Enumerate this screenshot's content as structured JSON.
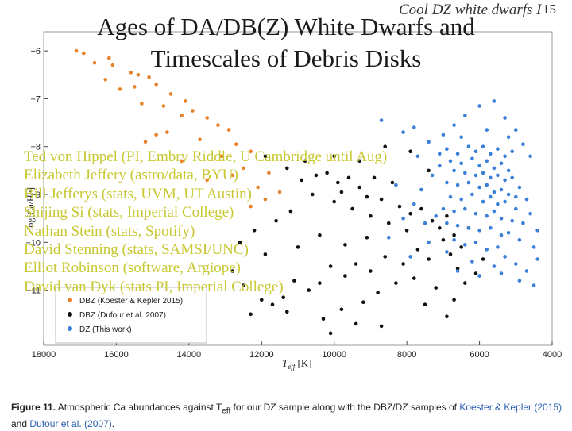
{
  "slide": {
    "title_line1": "Ages of DA/DB(Z) White Dwarfs and",
    "title_line2": "Timescales of Debris Disks",
    "credits": [
      "Ted von Hippel (PI, Embry Riddle, U Cambridge until Aug)",
      "Elizabeth Jeffery (astro/data, BYU)",
      "Bill Jefferys (stats, UVM, UT Austin)",
      "Shijing Si (stats, Imperial College)",
      "Nathan Stein (stats, Spotify)",
      "David Stenning (stats, SAMSI/UNC)",
      "Elliot Robinson (software, Argiope)",
      "David van Dyk (stats PI, Imperial College)"
    ]
  },
  "figure": {
    "banner": "Cool DZ white dwarfs I",
    "page_number": "15",
    "caption_label": "Figure 11.",
    "caption_text": " Atmospheric Ca abundances against T",
    "caption_sub": "eff",
    "caption_text2": " for our DZ sample along with the DBZ/DZ samples of ",
    "caption_cite1": "Koester & Kepler (2015)",
    "caption_text3": " and ",
    "caption_cite2": "Dufour et al. (2007)",
    "caption_end": "."
  },
  "colors": {
    "orange": "#e8822a",
    "black": "#111111",
    "blue": "#3a7fd8",
    "credits_text": "#c8c832"
  },
  "chart_data": {
    "type": "scatter",
    "xlabel": "T",
    "xlabel_sub": "eff",
    "xlabel_unit": " [K]",
    "ylabel": "log[Ca/He]",
    "xlim": [
      18000,
      4000
    ],
    "ylim": [
      -12.15,
      -5.6
    ],
    "x_ticks": [
      18000,
      16000,
      14000,
      12000,
      10000,
      8000,
      6000,
      4000
    ],
    "y_ticks": [
      -6,
      -7,
      -8,
      -9,
      -10,
      -11
    ],
    "grid": false,
    "legend_position": "bottom-left",
    "series": [
      {
        "name": "DBZ (Koester & Kepler 2015)",
        "color": "#e8822a",
        "points": [
          [
            17100,
            -6.0
          ],
          [
            16900,
            -6.05
          ],
          [
            16200,
            -6.15
          ],
          [
            16600,
            -6.25
          ],
          [
            16100,
            -6.3
          ],
          [
            15600,
            -6.45
          ],
          [
            15400,
            -6.5
          ],
          [
            15100,
            -6.55
          ],
          [
            16300,
            -6.6
          ],
          [
            14900,
            -6.7
          ],
          [
            15500,
            -6.75
          ],
          [
            15900,
            -6.8
          ],
          [
            14500,
            -6.9
          ],
          [
            14100,
            -7.05
          ],
          [
            15300,
            -7.1
          ],
          [
            14700,
            -7.15
          ],
          [
            13900,
            -7.25
          ],
          [
            14200,
            -7.35
          ],
          [
            13500,
            -7.4
          ],
          [
            13200,
            -7.55
          ],
          [
            12900,
            -7.65
          ],
          [
            14600,
            -7.7
          ],
          [
            14900,
            -7.75
          ],
          [
            13700,
            -7.85
          ],
          [
            15200,
            -7.9
          ],
          [
            12700,
            -7.95
          ],
          [
            12300,
            -8.1
          ],
          [
            13100,
            -8.2
          ],
          [
            14200,
            -8.3
          ],
          [
            12500,
            -8.45
          ],
          [
            11800,
            -8.55
          ],
          [
            12800,
            -8.6
          ],
          [
            13500,
            -8.7
          ],
          [
            12100,
            -8.85
          ],
          [
            11500,
            -8.95
          ],
          [
            11900,
            -9.1
          ],
          [
            12300,
            -9.25
          ]
        ]
      },
      {
        "name": "DBZ (Dufour et al. 2007)",
        "color": "#111111",
        "points": [
          [
            11900,
            -8.2
          ],
          [
            11300,
            -8.45
          ],
          [
            10800,
            -8.3
          ],
          [
            10500,
            -8.6
          ],
          [
            10900,
            -8.7
          ],
          [
            10200,
            -8.55
          ],
          [
            9900,
            -8.75
          ],
          [
            9600,
            -8.65
          ],
          [
            9300,
            -8.85
          ],
          [
            9800,
            -8.95
          ],
          [
            9100,
            -9.05
          ],
          [
            8700,
            -9.1
          ],
          [
            8900,
            -8.65
          ],
          [
            8400,
            -8.75
          ],
          [
            8200,
            -9.25
          ],
          [
            7900,
            -9.4
          ],
          [
            7600,
            -9.3
          ],
          [
            7300,
            -9.55
          ],
          [
            7100,
            -9.7
          ],
          [
            6900,
            -9.45
          ],
          [
            6700,
            -9.85
          ],
          [
            7000,
            -9.95
          ],
          [
            6500,
            -10.1
          ],
          [
            6300,
            -9.7
          ],
          [
            6800,
            -10.25
          ],
          [
            7400,
            -10.35
          ],
          [
            6600,
            -10.55
          ],
          [
            7700,
            -10.15
          ],
          [
            8100,
            -10.45
          ],
          [
            8600,
            -10.3
          ],
          [
            9000,
            -10.6
          ],
          [
            9400,
            -10.45
          ],
          [
            9700,
            -10.7
          ],
          [
            10100,
            -10.5
          ],
          [
            10400,
            -10.85
          ],
          [
            10700,
            -11.0
          ],
          [
            11100,
            -10.8
          ],
          [
            11400,
            -11.15
          ],
          [
            11700,
            -11.3
          ],
          [
            12000,
            -11.2
          ],
          [
            12300,
            -11.5
          ],
          [
            10300,
            -11.6
          ],
          [
            9800,
            -11.4
          ],
          [
            9200,
            -11.25
          ],
          [
            8800,
            -11.05
          ],
          [
            8300,
            -10.85
          ],
          [
            7800,
            -10.75
          ],
          [
            7200,
            -10.95
          ],
          [
            6700,
            -11.2
          ],
          [
            6400,
            -10.85
          ],
          [
            6100,
            -10.65
          ],
          [
            5900,
            -10.35
          ],
          [
            8000,
            -9.75
          ],
          [
            8500,
            -9.6
          ],
          [
            9000,
            -9.45
          ],
          [
            9500,
            -9.3
          ],
          [
            10000,
            -9.15
          ],
          [
            10600,
            -9.0
          ],
          [
            11200,
            -9.35
          ],
          [
            11600,
            -9.55
          ],
          [
            12200,
            -9.75
          ],
          [
            12600,
            -10.0
          ],
          [
            11900,
            -10.25
          ],
          [
            11000,
            -10.1
          ],
          [
            10400,
            -9.85
          ],
          [
            9700,
            -10.05
          ],
          [
            9100,
            -9.9
          ],
          [
            12800,
            -10.6
          ],
          [
            12500,
            -10.9
          ],
          [
            11300,
            -11.45
          ],
          [
            10100,
            -11.9
          ],
          [
            9400,
            -11.7
          ],
          [
            7500,
            -11.3
          ],
          [
            6900,
            -11.55
          ],
          [
            8700,
            -11.75
          ],
          [
            7400,
            -8.5
          ],
          [
            7900,
            -8.1
          ],
          [
            8600,
            -8.0
          ],
          [
            9300,
            -8.3
          ],
          [
            10000,
            -8.2
          ]
        ]
      },
      {
        "name": "DZ (This work)",
        "color": "#3a7fd8",
        "points": [
          [
            8700,
            -7.45
          ],
          [
            8100,
            -7.7
          ],
          [
            7800,
            -7.6
          ],
          [
            7400,
            -7.9
          ],
          [
            7000,
            -7.75
          ],
          [
            6700,
            -7.55
          ],
          [
            6400,
            -7.35
          ],
          [
            6000,
            -7.15
          ],
          [
            5600,
            -7.05
          ],
          [
            5300,
            -7.4
          ],
          [
            5000,
            -7.65
          ],
          [
            4800,
            -7.95
          ],
          [
            4600,
            -8.2
          ],
          [
            6900,
            -8.05
          ],
          [
            6600,
            -8.15
          ],
          [
            6300,
            -8.0
          ],
          [
            6100,
            -8.1
          ],
          [
            5900,
            -8.0
          ],
          [
            5700,
            -8.15
          ],
          [
            5500,
            -8.05
          ],
          [
            5300,
            -8.2
          ],
          [
            5100,
            -8.1
          ],
          [
            6800,
            -8.3
          ],
          [
            6500,
            -8.35
          ],
          [
            6200,
            -8.25
          ],
          [
            6000,
            -8.4
          ],
          [
            5800,
            -8.3
          ],
          [
            5600,
            -8.45
          ],
          [
            5400,
            -8.35
          ],
          [
            5200,
            -8.5
          ],
          [
            6700,
            -8.5
          ],
          [
            6400,
            -8.55
          ],
          [
            6100,
            -8.6
          ],
          [
            5900,
            -8.55
          ],
          [
            5700,
            -8.65
          ],
          [
            5500,
            -8.6
          ],
          [
            5300,
            -8.7
          ],
          [
            5100,
            -8.65
          ],
          [
            6900,
            -8.75
          ],
          [
            6600,
            -8.8
          ],
          [
            6300,
            -8.75
          ],
          [
            6000,
            -8.85
          ],
          [
            5800,
            -8.8
          ],
          [
            5600,
            -8.95
          ],
          [
            5400,
            -8.9
          ],
          [
            5200,
            -9.0
          ],
          [
            4900,
            -8.85
          ],
          [
            6800,
            -9.05
          ],
          [
            6500,
            -9.1
          ],
          [
            6200,
            -9.0
          ],
          [
            5900,
            -9.15
          ],
          [
            5700,
            -9.05
          ],
          [
            5500,
            -9.2
          ],
          [
            5300,
            -9.15
          ],
          [
            5000,
            -9.3
          ],
          [
            4700,
            -9.1
          ],
          [
            7000,
            -9.3
          ],
          [
            6700,
            -9.35
          ],
          [
            6400,
            -9.3
          ],
          [
            6100,
            -9.4
          ],
          [
            5800,
            -9.45
          ],
          [
            5600,
            -9.35
          ],
          [
            5400,
            -9.5
          ],
          [
            5100,
            -9.55
          ],
          [
            4800,
            -9.6
          ],
          [
            6900,
            -9.6
          ],
          [
            6600,
            -9.65
          ],
          [
            6300,
            -9.7
          ],
          [
            6000,
            -9.75
          ],
          [
            5700,
            -9.7
          ],
          [
            5400,
            -9.85
          ],
          [
            5200,
            -9.8
          ],
          [
            4900,
            -9.95
          ],
          [
            4500,
            -10.1
          ],
          [
            6700,
            -9.95
          ],
          [
            6400,
            -10.05
          ],
          [
            6100,
            -10.0
          ],
          [
            5800,
            -10.15
          ],
          [
            5500,
            -10.1
          ],
          [
            5300,
            -10.3
          ],
          [
            7200,
            -9.45
          ],
          [
            7500,
            -9.6
          ],
          [
            7800,
            -9.2
          ],
          [
            8100,
            -9.5
          ],
          [
            7300,
            -8.6
          ],
          [
            7600,
            -8.9
          ],
          [
            7100,
            -8.4
          ],
          [
            7700,
            -8.2
          ],
          [
            6500,
            -7.8
          ],
          [
            5800,
            -7.65
          ],
          [
            5200,
            -7.8
          ],
          [
            6200,
            -10.4
          ],
          [
            5600,
            -10.5
          ],
          [
            5000,
            -10.45
          ],
          [
            4700,
            -10.6
          ],
          [
            4400,
            -10.35
          ],
          [
            6900,
            -10.2
          ],
          [
            7400,
            -10.0
          ],
          [
            8300,
            -8.8
          ],
          [
            8500,
            -9.9
          ],
          [
            7900,
            -10.3
          ],
          [
            6600,
            -10.6
          ],
          [
            6000,
            -10.7
          ],
          [
            5400,
            -10.65
          ],
          [
            4900,
            -10.8
          ],
          [
            4500,
            -10.9
          ],
          [
            7100,
            -8.15
          ],
          [
            5000,
            -9.05
          ],
          [
            4600,
            -9.4
          ],
          [
            4400,
            -9.75
          ]
        ]
      }
    ]
  }
}
